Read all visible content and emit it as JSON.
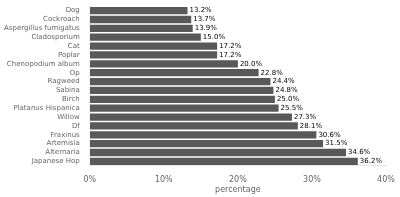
{
  "chart_data": {
    "type": "bar",
    "orientation": "horizontal",
    "categories": [
      "Japanese Hop",
      "Alternaria",
      "Artemisia",
      "Fraxinus",
      "Df",
      "Willow",
      "Platanus Hispanica",
      "Birch",
      "Sabina",
      "Ragweed",
      "Op",
      "Chenopodium album",
      "Poplar",
      "Cat",
      "Cladosporium",
      "Aspergillus fumigatus",
      "Cockroach",
      "Dog"
    ],
    "values": [
      36.2,
      34.6,
      31.5,
      30.6,
      28.1,
      27.3,
      25.5,
      25.0,
      24.8,
      24.4,
      22.8,
      20.0,
      17.2,
      17.2,
      15.0,
      13.9,
      13.7,
      13.2
    ],
    "value_labels": [
      "36.2%",
      "34.6%",
      "31.5%",
      "30.6%",
      "28.1%",
      "27.3%",
      "25.5%",
      "25.0%",
      "24.8%",
      "24.4%",
      "22.8%",
      "20.0%",
      "17.2%",
      "17.2%",
      "15.0%",
      "13.9%",
      "13.7%",
      "13.2%"
    ],
    "color": "#595959",
    "xlim": [
      0,
      40
    ],
    "xticks": [
      {
        "value": 0,
        "label": "0%"
      },
      {
        "value": 10,
        "label": "10%"
      },
      {
        "value": 20,
        "label": "20%"
      },
      {
        "value": 30,
        "label": "30%"
      },
      {
        "value": 40,
        "label": "40%"
      }
    ],
    "xlabel": "percentage",
    "grid": false,
    "data_labels": true
  }
}
